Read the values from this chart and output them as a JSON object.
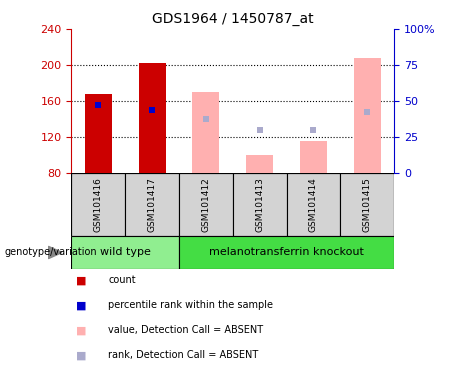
{
  "title": "GDS1964 / 1450787_at",
  "samples": [
    "GSM101416",
    "GSM101417",
    "GSM101412",
    "GSM101413",
    "GSM101414",
    "GSM101415"
  ],
  "red_bar_values": {
    "GSM101416": 168,
    "GSM101417": 202
  },
  "blue_sq_values": {
    "GSM101416": 155,
    "GSM101417": 150
  },
  "pink_bar_values": {
    "GSM101412": 170,
    "GSM101413": 100,
    "GSM101414": 115,
    "GSM101415": 207
  },
  "lblue_sq_values": {
    "GSM101412": 140,
    "GSM101413": 128,
    "GSM101414": 128,
    "GSM101415": 148
  },
  "ymin": 80,
  "ymax": 240,
  "yticks_left": [
    80,
    120,
    160,
    200,
    240
  ],
  "yticks_right_labels": [
    "0",
    "25",
    "50",
    "75",
    "100%"
  ],
  "bar_width": 0.5,
  "red_color": "#CC0000",
  "blue_color": "#0000CC",
  "pink_color": "#FFB0B0",
  "lblue_color": "#AAAACC",
  "cell_bg": "#D3D3D3",
  "wt_color": "#90EE90",
  "mt_color": "#44DD44",
  "legend_items": [
    "count",
    "percentile rank within the sample",
    "value, Detection Call = ABSENT",
    "rank, Detection Call = ABSENT"
  ],
  "legend_colors": [
    "#CC0000",
    "#0000CC",
    "#FFB0B0",
    "#AAAACC"
  ],
  "wt_label": "wild type",
  "mt_label": "melanotransferrin knockout",
  "geno_label": "genotype/variation"
}
